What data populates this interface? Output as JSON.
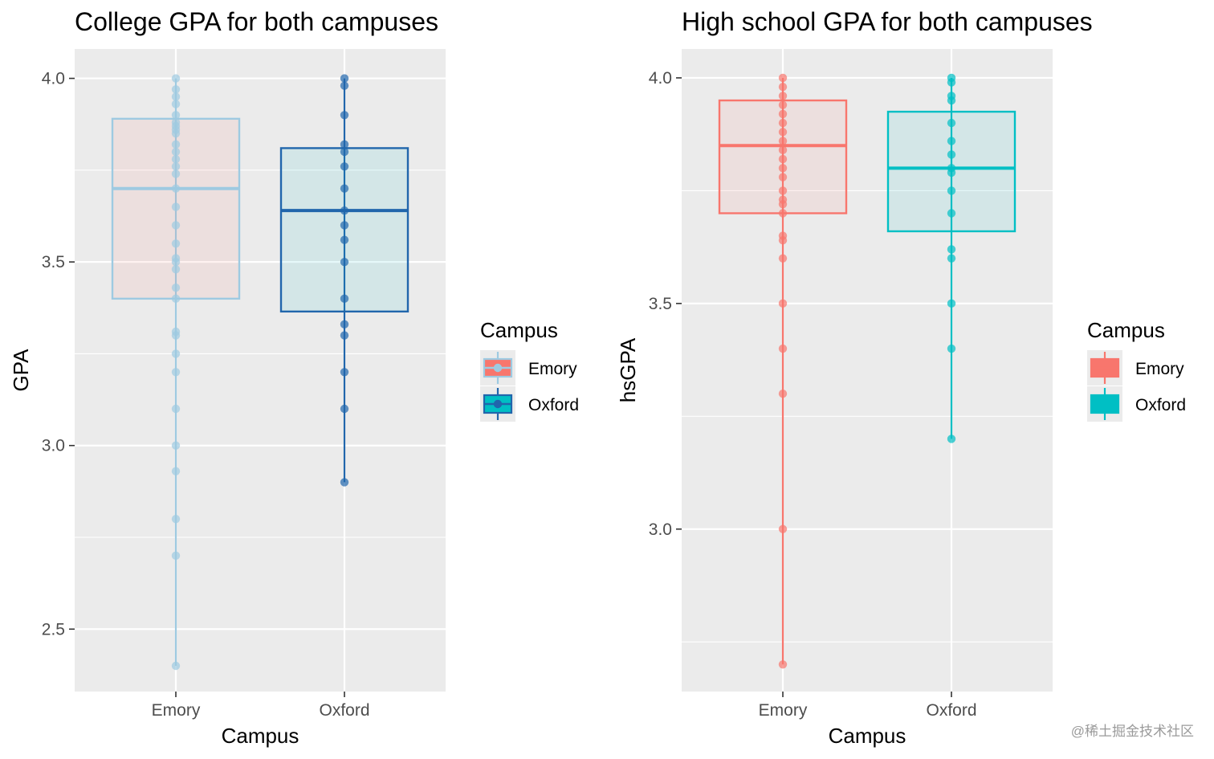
{
  "chart_data": [
    {
      "type": "box",
      "title": "College GPA for both campuses",
      "xlabel": "Campus",
      "ylabel": "GPA",
      "categories": [
        "Emory",
        "Oxford"
      ],
      "ylim": [
        2.33,
        4.08
      ],
      "yticks": [
        2.5,
        3.0,
        3.5,
        4.0
      ],
      "ytick_labels": [
        "2.5",
        "3.0",
        "3.5",
        "4.0"
      ],
      "grid": true,
      "legend": {
        "title": "Campus",
        "position": "right",
        "entries": [
          {
            "label": "Emory",
            "fill": "#F8766D",
            "line": "#9ECAE1"
          },
          {
            "label": "Oxford",
            "fill": "#00BFC4",
            "line": "#2166AC"
          }
        ]
      },
      "series": [
        {
          "name": "Emory",
          "fill": "#F8766D",
          "line": "#9ECAE1",
          "min": 2.4,
          "q1": 3.4,
          "median": 3.7,
          "q3": 3.89,
          "max": 4.0,
          "points": [
            4.0,
            3.97,
            3.95,
            3.93,
            3.9,
            3.88,
            3.87,
            3.86,
            3.85,
            3.82,
            3.8,
            3.78,
            3.76,
            3.74,
            3.7,
            3.65,
            3.6,
            3.55,
            3.51,
            3.5,
            3.48,
            3.43,
            3.4,
            3.31,
            3.3,
            3.25,
            3.2,
            3.1,
            3.0,
            2.93,
            2.8,
            2.7,
            2.4
          ]
        },
        {
          "name": "Oxford",
          "fill": "#00BFC4",
          "line": "#2166AC",
          "min": 2.9,
          "q1": 3.365,
          "median": 3.64,
          "q3": 3.81,
          "max": 4.0,
          "points": [
            4.0,
            3.98,
            3.9,
            3.82,
            3.8,
            3.76,
            3.7,
            3.64,
            3.6,
            3.56,
            3.5,
            3.4,
            3.33,
            3.3,
            3.2,
            3.1,
            2.9
          ]
        }
      ]
    },
    {
      "type": "box",
      "title": "High school GPA for both campuses",
      "xlabel": "Campus",
      "ylabel": "hsGPA",
      "categories": [
        "Emory",
        "Oxford"
      ],
      "ylim": [
        2.64,
        4.064
      ],
      "yticks": [
        3.0,
        3.5,
        4.0
      ],
      "ytick_labels": [
        "3.0",
        "3.5",
        "4.0"
      ],
      "grid": true,
      "legend": {
        "title": "Campus",
        "position": "right",
        "entries": [
          {
            "label": "Emory",
            "fill": "#F8766D",
            "line": "#F8766D"
          },
          {
            "label": "Oxford",
            "fill": "#00BFC4",
            "line": "#00BFC4"
          }
        ]
      },
      "series": [
        {
          "name": "Emory",
          "fill": "#F8766D",
          "line": "#F8766D",
          "min": 2.7,
          "q1": 3.7,
          "median": 3.85,
          "q3": 3.95,
          "max": 4.0,
          "points": [
            4.0,
            3.98,
            3.96,
            3.94,
            3.92,
            3.9,
            3.88,
            3.86,
            3.84,
            3.82,
            3.8,
            3.78,
            3.75,
            3.73,
            3.72,
            3.7,
            3.65,
            3.64,
            3.6,
            3.5,
            3.4,
            3.3,
            3.0,
            2.7
          ]
        },
        {
          "name": "Oxford",
          "fill": "#00BFC4",
          "line": "#00BFC4",
          "min": 3.2,
          "q1": 3.66,
          "median": 3.8,
          "q3": 3.925,
          "max": 4.0,
          "points": [
            4.0,
            3.99,
            3.96,
            3.95,
            3.9,
            3.86,
            3.83,
            3.8,
            3.79,
            3.75,
            3.7,
            3.62,
            3.6,
            3.5,
            3.4,
            3.2
          ]
        }
      ]
    }
  ],
  "watermark": "@稀土掘金技术社区"
}
